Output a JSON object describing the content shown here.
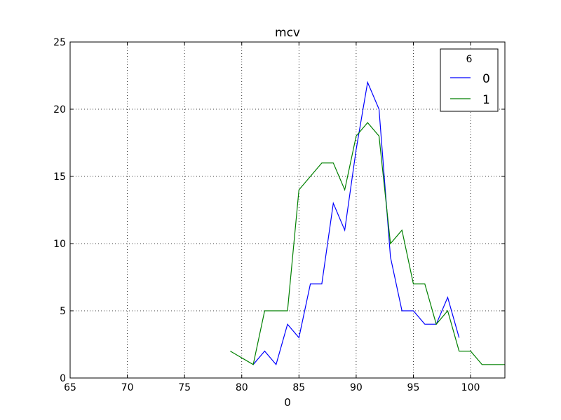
{
  "chart_data": {
    "type": "line",
    "title": "mcv",
    "xlabel": "0",
    "ylabel": "",
    "xlim": [
      65,
      103
    ],
    "ylim": [
      0,
      25
    ],
    "xticks": [
      65,
      70,
      75,
      80,
      85,
      90,
      95,
      100
    ],
    "yticks": [
      0,
      5,
      10,
      15,
      20,
      25
    ],
    "grid": true,
    "legend": {
      "title": "6",
      "placement": "top-right"
    },
    "series": [
      {
        "name": "0",
        "color": "#0000ff",
        "x": [
          81,
          82,
          83,
          84,
          85,
          86,
          87,
          88,
          89,
          90,
          91,
          92,
          93,
          94,
          95,
          96,
          97,
          98,
          99
        ],
        "y": [
          1,
          2,
          1,
          4,
          3,
          7,
          7,
          13,
          11,
          17,
          22,
          20,
          9,
          5,
          5,
          4,
          4,
          6,
          3
        ]
      },
      {
        "name": "1",
        "color": "#008000",
        "x": [
          79,
          80,
          81,
          82,
          83,
          84,
          85,
          86,
          87,
          88,
          89,
          90,
          91,
          92,
          93,
          94,
          95,
          96,
          97,
          98,
          99,
          100,
          101,
          102,
          103
        ],
        "y": [
          2,
          1.5,
          1,
          5,
          5,
          5,
          14,
          15,
          16,
          16,
          14,
          18,
          19,
          18,
          10,
          11,
          7,
          7,
          4,
          5,
          2,
          2,
          1,
          1,
          1
        ]
      }
    ]
  }
}
